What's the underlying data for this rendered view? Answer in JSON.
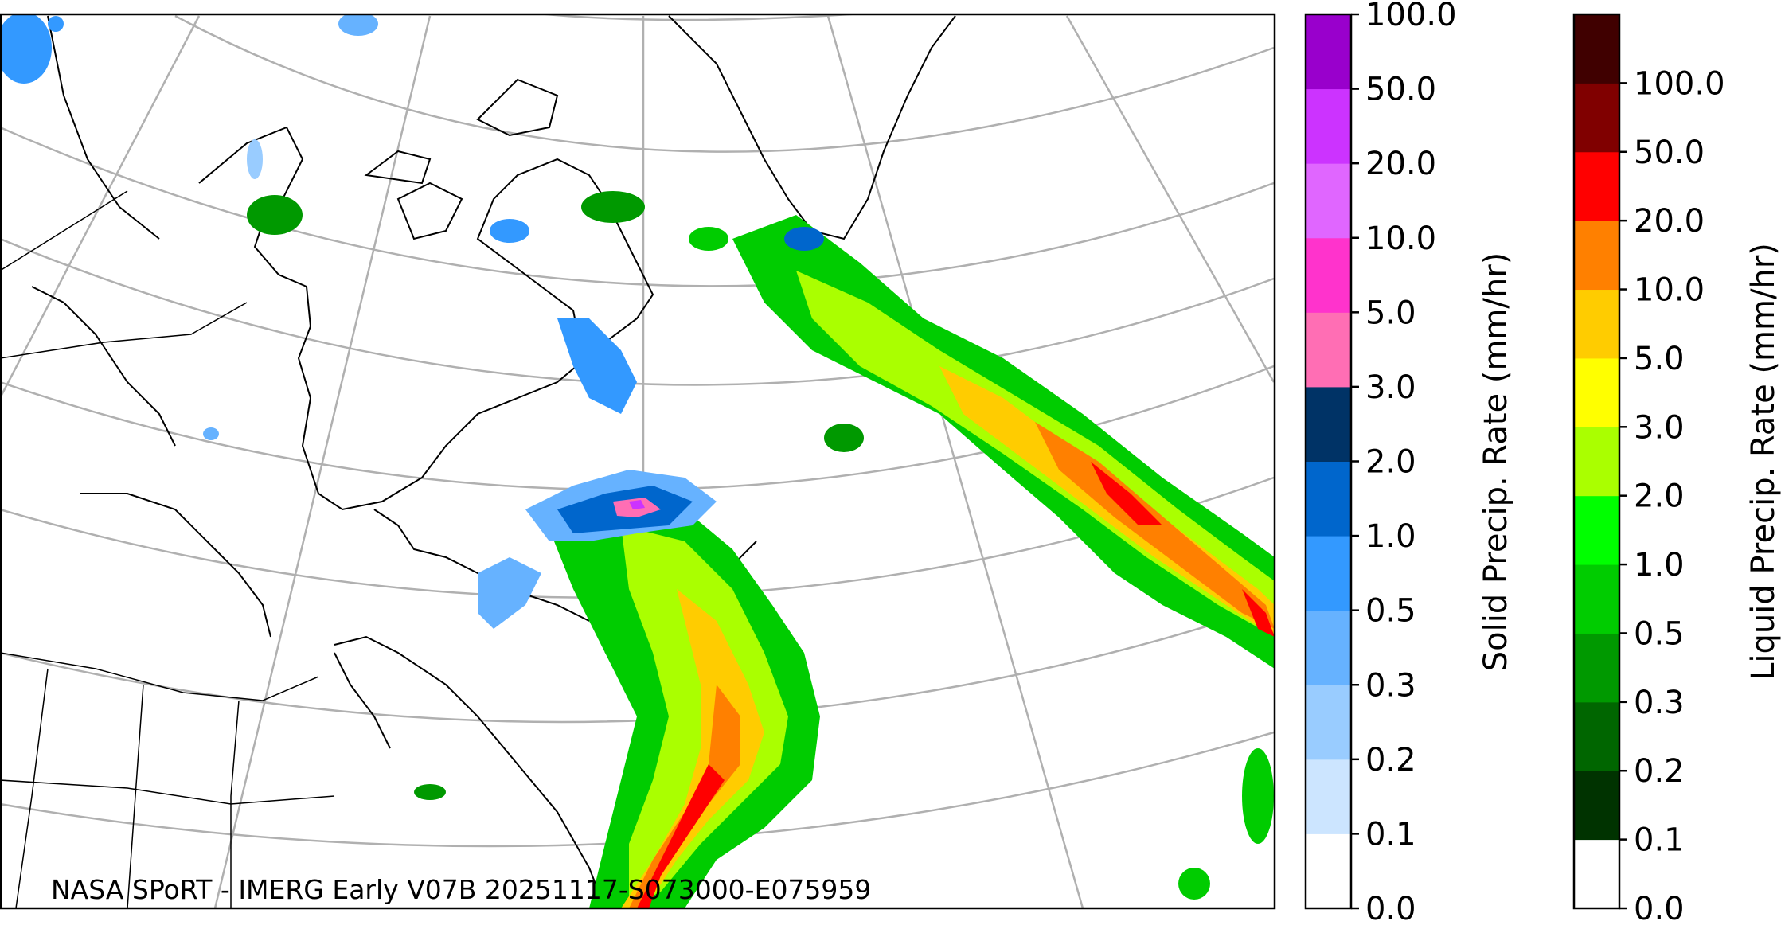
{
  "map": {
    "credit": "NASA SPoRT - IMERG Early V07B 20251117-S073000-E075959"
  },
  "solid_colorbar": {
    "label": "Solid Precip. Rate (mm/hr)",
    "ticks": [
      "0.0",
      "0.1",
      "0.2",
      "0.3",
      "0.5",
      "1.0",
      "2.0",
      "3.0",
      "5.0",
      "10.0",
      "20.0",
      "50.0",
      "100.0"
    ],
    "colors": [
      "#ffffff",
      "#cce5ff",
      "#99ccff",
      "#66b2ff",
      "#3399ff",
      "#0066cc",
      "#003366",
      "#ff6eb4",
      "#ff33cc",
      "#e066ff",
      "#cc33ff",
      "#9900cc"
    ]
  },
  "liquid_colorbar": {
    "label": "Liquid Precip. Rate (mm/hr)",
    "ticks": [
      "0.0",
      "0.1",
      "0.2",
      "0.3",
      "0.5",
      "1.0",
      "2.0",
      "3.0",
      "5.0",
      "10.0",
      "20.0",
      "50.0",
      "100.0"
    ],
    "colors": [
      "#ffffff",
      "#003300",
      "#006600",
      "#009900",
      "#00cc00",
      "#00ff00",
      "#aaff00",
      "#ffff00",
      "#ffcc00",
      "#ff8000",
      "#ff0000",
      "#800000",
      "#400000"
    ]
  },
  "legend_colors": {
    "coastline": "#000000",
    "gridline": "#b0b0b0",
    "background": "#ffffff"
  }
}
